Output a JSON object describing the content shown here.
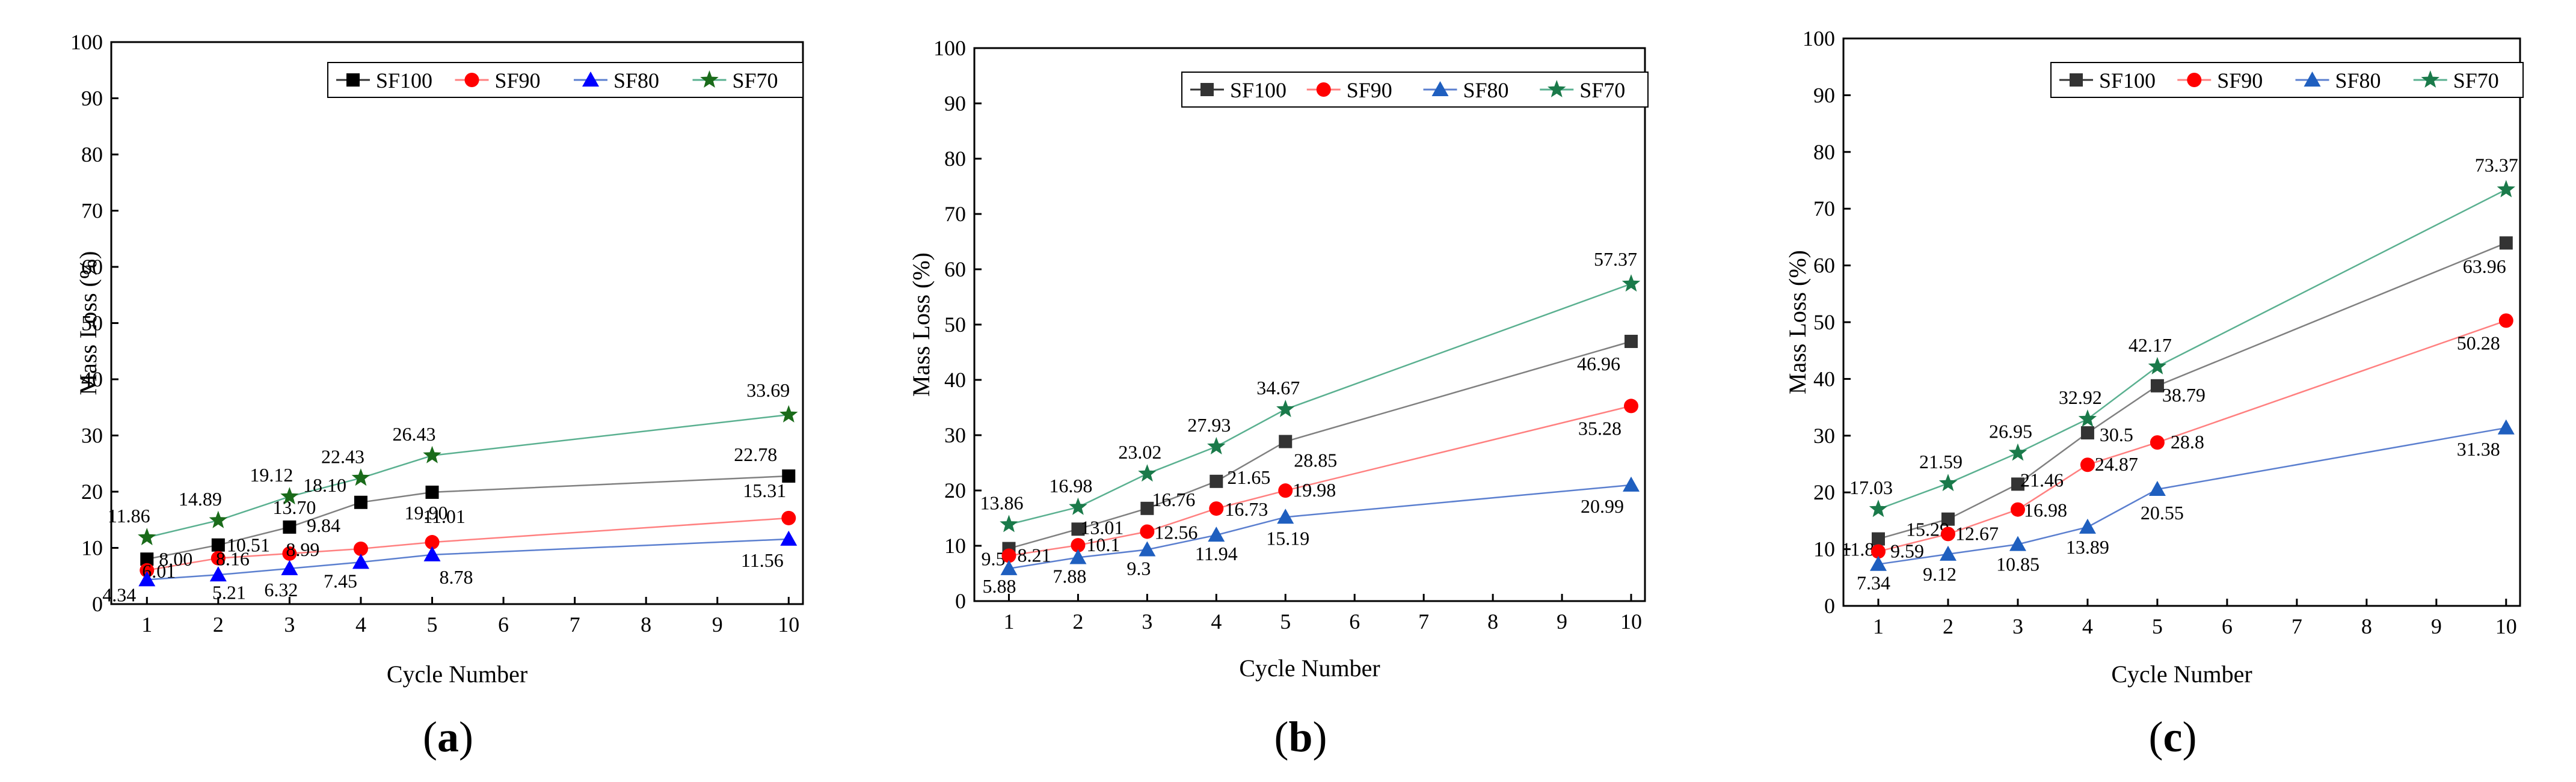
{
  "figure": {
    "panel_labels": [
      {
        "open": "(",
        "letter": "a",
        "close": ")"
      },
      {
        "open": "(",
        "letter": "b",
        "close": ")"
      },
      {
        "open": "(",
        "letter": "c",
        "close": ")"
      }
    ]
  },
  "chart_data": [
    {
      "type": "line",
      "panel": "a",
      "xlabel": "Cycle Number",
      "ylabel": "Mass Loss (%)",
      "xlim": [
        0.5,
        10.2
      ],
      "ylim": [
        0,
        100
      ],
      "xticks": [
        1,
        2,
        3,
        4,
        5,
        6,
        7,
        8,
        9,
        10
      ],
      "yticks": [
        0,
        10,
        20,
        30,
        40,
        50,
        60,
        70,
        80,
        90,
        100
      ],
      "legend_position": "top-right",
      "x": [
        1,
        2,
        3,
        4,
        5,
        10
      ],
      "series": [
        {
          "name": "SF100",
          "marker": "square",
          "color": "#000000",
          "line_color": "#808080",
          "values": [
            8.0,
            10.51,
            13.7,
            18.1,
            19.9,
            22.78
          ],
          "labels": [
            "8.00",
            "10.51",
            "13.70",
            "18.10",
            "19.90",
            "22.78"
          ]
        },
        {
          "name": "SF90",
          "marker": "circle",
          "color": "#ff0000",
          "line_color": "#ff8080",
          "values": [
            6.01,
            8.16,
            8.99,
            9.84,
            11.01,
            15.31
          ],
          "labels": [
            "6.01",
            "8.16",
            "8.99",
            "9.84",
            "11.01",
            "15.31"
          ]
        },
        {
          "name": "SF80",
          "marker": "triangle",
          "color": "#0000ff",
          "line_color": "#5b7fcf",
          "values": [
            4.34,
            5.21,
            6.32,
            7.45,
            8.78,
            11.56
          ],
          "labels": [
            "4.34",
            "5.21",
            "6.32",
            "7.45",
            "8.78",
            "11.56"
          ]
        },
        {
          "name": "SF70",
          "marker": "star",
          "color": "#1a6b1a",
          "line_color": "#5ab090",
          "values": [
            11.86,
            14.89,
            19.12,
            22.43,
            26.43,
            33.69
          ],
          "labels": [
            "11.86",
            "14.89",
            "19.12",
            "22.43",
            "26.43",
            "33.69"
          ]
        }
      ]
    },
    {
      "type": "line",
      "panel": "b",
      "xlabel": "Cycle Number",
      "ylabel": "Mass Loss (%)",
      "xlim": [
        0.5,
        10.2
      ],
      "ylim": [
        0,
        100
      ],
      "xticks": [
        1,
        2,
        3,
        4,
        5,
        6,
        7,
        8,
        9,
        10
      ],
      "yticks": [
        0,
        10,
        20,
        30,
        40,
        50,
        60,
        70,
        80,
        90,
        100
      ],
      "legend_position": "top-right",
      "x": [
        1,
        2,
        3,
        4,
        5,
        10
      ],
      "series": [
        {
          "name": "SF100",
          "marker": "square",
          "color": "#333333",
          "line_color": "#808080",
          "values": [
            9.5,
            13.01,
            16.76,
            21.65,
            28.85,
            46.96
          ],
          "labels": [
            "9.5",
            "13.01",
            "16.76",
            "21.65",
            "28.85",
            "46.96"
          ]
        },
        {
          "name": "SF90",
          "marker": "circle",
          "color": "#ff0000",
          "line_color": "#ff8080",
          "values": [
            8.21,
            10.1,
            12.56,
            16.73,
            19.98,
            35.28
          ],
          "labels": [
            "8.21",
            "10.1",
            "12.56",
            "16.73",
            "19.98",
            "35.28"
          ]
        },
        {
          "name": "SF80",
          "marker": "triangle",
          "color": "#1f5fbf",
          "line_color": "#5b7fcf",
          "values": [
            5.88,
            7.88,
            9.3,
            11.94,
            15.19,
            20.99
          ],
          "labels": [
            "5.88",
            "7.88",
            "9.3",
            "11.94",
            "15.19",
            "20.99"
          ]
        },
        {
          "name": "SF70",
          "marker": "star",
          "color": "#1a7a4a",
          "line_color": "#5ab090",
          "values": [
            13.86,
            16.98,
            23.02,
            27.93,
            34.67,
            57.37
          ],
          "labels": [
            "13.86",
            "16.98",
            "23.02",
            "27.93",
            "34.67",
            "57.37"
          ]
        }
      ]
    },
    {
      "type": "line",
      "panel": "c",
      "xlabel": "Cycle Number",
      "ylabel": "Mass Loss (%)",
      "xlim": [
        0.5,
        10.2
      ],
      "ylim": [
        0,
        100
      ],
      "xticks": [
        1,
        2,
        3,
        4,
        5,
        6,
        7,
        8,
        9,
        10
      ],
      "yticks": [
        0,
        10,
        20,
        30,
        40,
        50,
        60,
        70,
        80,
        90,
        100
      ],
      "legend_position": "top-right",
      "x": [
        1,
        2,
        3,
        4,
        5,
        10
      ],
      "series": [
        {
          "name": "SF100",
          "marker": "square",
          "color": "#333333",
          "line_color": "#808080",
          "values": [
            11.8,
            15.29,
            21.46,
            30.5,
            38.79,
            63.96
          ],
          "labels": [
            "11.8",
            "15.29",
            "21.46",
            "30.5",
            "38.79",
            "63.96"
          ]
        },
        {
          "name": "SF90",
          "marker": "circle",
          "color": "#ff0000",
          "line_color": "#ff8080",
          "values": [
            9.59,
            12.67,
            16.98,
            24.87,
            28.8,
            50.28
          ],
          "labels": [
            "9.59",
            "12.67",
            "16.98",
            "24.87",
            "28.8",
            "50.28"
          ]
        },
        {
          "name": "SF80",
          "marker": "triangle",
          "color": "#1f5fbf",
          "line_color": "#5b7fcf",
          "values": [
            7.34,
            9.12,
            10.85,
            13.89,
            20.55,
            31.38
          ],
          "labels": [
            "7.34",
            "9.12",
            "10.85",
            "13.89",
            "20.55",
            "31.38"
          ]
        },
        {
          "name": "SF70",
          "marker": "star",
          "color": "#1a7a4a",
          "line_color": "#5ab090",
          "values": [
            17.03,
            21.59,
            26.95,
            32.92,
            42.17,
            73.37
          ],
          "labels": [
            "17.03",
            "21.59",
            "26.95",
            "32.92",
            "42.17",
            "73.37"
          ]
        }
      ]
    }
  ]
}
